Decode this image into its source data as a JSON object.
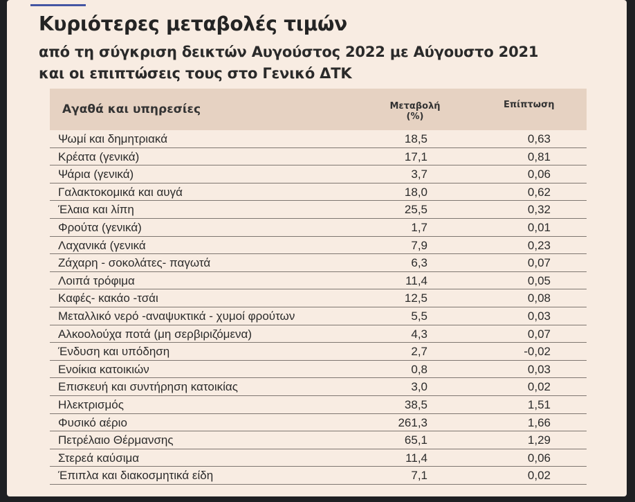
{
  "header": {
    "title": "Κυριότερες μεταβολές τιμών",
    "subtitle_line1": "από τη σύγκριση δεικτών Αυγούστος 2022 με Αύγουστο 2021",
    "subtitle_line2": "και οι επιπτώσεις τους στο Γενικό ΔΤΚ"
  },
  "table": {
    "columns": {
      "goods": "Αγαθά και υπηρεσίες",
      "change_line1": "Μεταβολή",
      "change_line2": "(%)",
      "impact": "Επίπτωση"
    },
    "rows": [
      {
        "name": "Ψωμί και δημητριακά",
        "change": "18,5",
        "impact": "0,63"
      },
      {
        "name": "Κρέατα (γενικά)",
        "change": "17,1",
        "impact": "0,81"
      },
      {
        "name": "Ψάρια (γενικά)",
        "change": "3,7",
        "impact": "0,06"
      },
      {
        "name": "Γαλακτοκομικά και αυγά",
        "change": "18,0",
        "impact": "0,62"
      },
      {
        "name": "Έλαια και λίπη",
        "change": "25,5",
        "impact": "0,32"
      },
      {
        "name": "Φρούτα (γενικά)",
        "change": "1,7",
        "impact": "0,01"
      },
      {
        "name": "Λαχανικά (γενικά",
        "change": "7,9",
        "impact": "0,23"
      },
      {
        "name": "Ζάχαρη - σοκολάτες- παγωτά",
        "change": "6,3",
        "impact": "0,07"
      },
      {
        "name": "Λοιπά τρόφιμα",
        "change": "11,4",
        "impact": "0,05"
      },
      {
        "name": "Καφές- κακάο -τσάι",
        "change": "12,5",
        "impact": "0,08"
      },
      {
        "name": "Μεταλλικό νερό -αναψυκτικά - χυμοί φρούτων",
        "change": "5,5",
        "impact": "0,03"
      },
      {
        "name": "Αλκοολούχα ποτά (μη σερβιριζόμενα)",
        "change": "4,3",
        "impact": "0,07"
      },
      {
        "name": "Ένδυση και υπόδηση",
        "change": "2,7",
        "impact": "-0,02"
      },
      {
        "name": "Ενοίκια κατοικιών",
        "change": "0,8",
        "impact": "0,03"
      },
      {
        "name": "Επισκευή και συντήρηση κατοικίας",
        "change": "3,0",
        "impact": "0,02"
      },
      {
        "name": "Ηλεκτρισμός",
        "change": "38,5",
        "impact": "1,51"
      },
      {
        "name": "Φυσικό αέριο",
        "change": "261,3",
        "impact": "1,66"
      },
      {
        "name": "Πετρέλαιο Θέρμανσης",
        "change": "65,1",
        "impact": "1,29"
      },
      {
        "name": "Στερεά καύσιμα",
        "change": "11,4",
        "impact": "0,06"
      },
      {
        "name": "Έπιπλα και διακοσμητικά είδη",
        "change": "7,1",
        "impact": "0,02"
      }
    ]
  },
  "colors": {
    "background": "#f8ece2",
    "header_band": "#e6d2c2",
    "accent_line": "#4455a3"
  }
}
